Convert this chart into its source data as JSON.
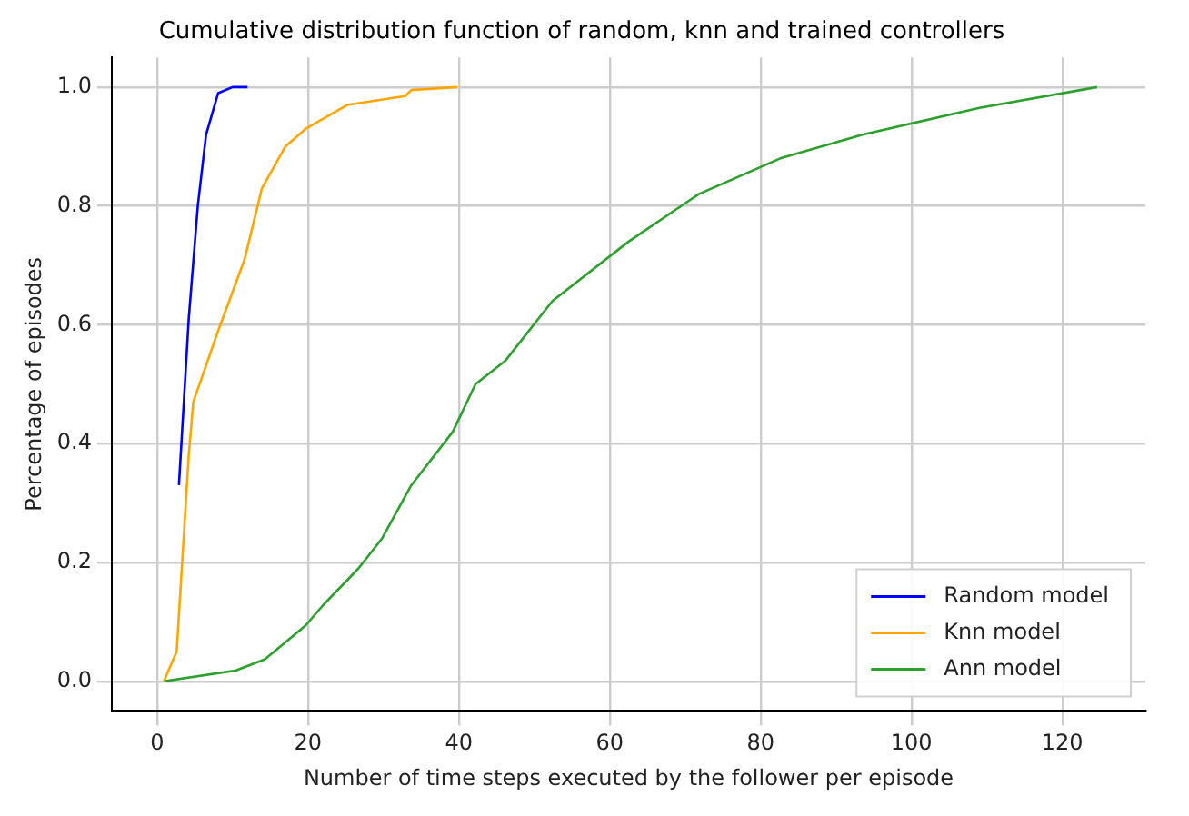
{
  "chart_data": {
    "type": "line",
    "title": "Cumulative distribution function of random, knn and trained controllers",
    "xlabel": "Number of time steps executed by the follower per episode",
    "ylabel": "Percentage of episodes",
    "xlim": [
      -6,
      131
    ],
    "xticks": [
      0,
      20,
      40,
      60,
      80,
      100,
      120
    ],
    "ylim": [
      -0.05,
      1.05
    ],
    "yticks": [
      {
        "value": 0,
        "label": "0.0"
      },
      {
        "value": 0.2,
        "label": "0.2"
      },
      {
        "value": 0.4,
        "label": "0.4"
      },
      {
        "value": 0.6,
        "label": "0.6"
      },
      {
        "value": 0.8,
        "label": "0.8"
      },
      {
        "value": 1,
        "label": "1.0"
      }
    ],
    "grid": true,
    "legend": "bottom right",
    "marker": "none",
    "line_style": "solid",
    "series": [
      {
        "name": "Random model",
        "color": "#0000ff",
        "x": [
          2.9,
          4.2,
          5.4,
          6.5,
          8.1,
          10,
          12
        ],
        "values": [
          0.33,
          0.61,
          0.8,
          0.92,
          0.99,
          1.0,
          1.0
        ]
      },
      {
        "name": "Knn model",
        "color": "#ffa500",
        "x": [
          0.9,
          2.6,
          4.2,
          4.8,
          8.1,
          11.6,
          13.9,
          17,
          19.7,
          25.2,
          32.9,
          33.7,
          39.8
        ],
        "values": [
          0,
          0.05,
          0.38,
          0.47,
          0.59,
          0.71,
          0.83,
          0.9,
          0.93,
          0.97,
          0.985,
          0.995,
          1.0
        ]
      },
      {
        "name": "Ann model",
        "color": "#2ca02c",
        "x": [
          0.9,
          10.4,
          14.3,
          19.7,
          22,
          26.7,
          29.8,
          33.7,
          39.2,
          42.2,
          46.2,
          52.4,
          62.5,
          71.8,
          82.6,
          93.5,
          109,
          124.6
        ],
        "values": [
          0,
          0.018,
          0.037,
          0.094,
          0.128,
          0.19,
          0.24,
          0.33,
          0.42,
          0.5,
          0.54,
          0.64,
          0.74,
          0.82,
          0.88,
          0.92,
          0.965,
          1.0
        ]
      }
    ]
  }
}
